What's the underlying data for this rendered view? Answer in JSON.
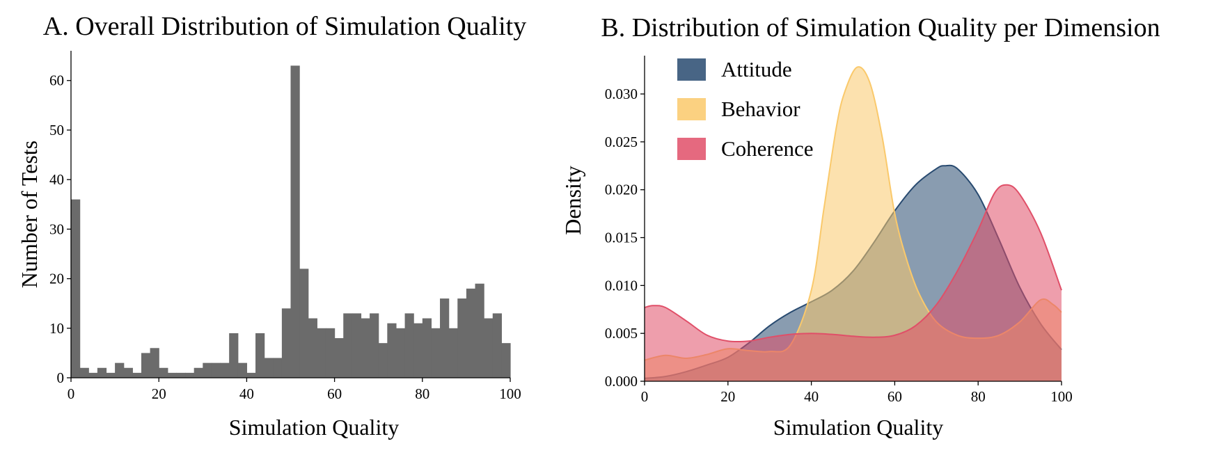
{
  "chart_data": [
    {
      "type": "bar",
      "title": "A. Overall Distribution of Simulation Quality",
      "xlabel": "Simulation Quality",
      "ylabel": "Number of Tests",
      "xlim": [
        0,
        100
      ],
      "ylim": [
        0,
        66
      ],
      "xticks": [
        0,
        20,
        40,
        60,
        80,
        100
      ],
      "yticks": [
        0,
        10,
        20,
        30,
        40,
        50,
        60
      ],
      "bin_width": 2,
      "bar_color": "#6b6b6b",
      "grid": false,
      "values": [
        36,
        2,
        1,
        2,
        1,
        3,
        2,
        1,
        5,
        6,
        2,
        1,
        1,
        1,
        2,
        3,
        3,
        3,
        9,
        3,
        1,
        9,
        4,
        4,
        14,
        63,
        22,
        12,
        10,
        10,
        8,
        13,
        13,
        12,
        13,
        7,
        11,
        10,
        13,
        11,
        12,
        10,
        16,
        10,
        16,
        18,
        19,
        12,
        13,
        7
      ]
    },
    {
      "type": "area",
      "title": "B. Distribution of Simulation Quality per Dimension",
      "xlabel": "Simulation Quality",
      "ylabel": "Density",
      "xlim": [
        0,
        100
      ],
      "ylim": [
        0,
        0.034
      ],
      "xticks": [
        0,
        20,
        40,
        60,
        80,
        100
      ],
      "yticks": [
        "0.000",
        "0.005",
        "0.010",
        "0.015",
        "0.020",
        "0.025",
        "0.030"
      ],
      "legend_position": "top-left",
      "grid": false,
      "series": [
        {
          "name": "Attitude",
          "color": "#284a70",
          "points": [
            [
              0,
              0.0003
            ],
            [
              5,
              0.0005
            ],
            [
              10,
              0.001
            ],
            [
              15,
              0.0017
            ],
            [
              20,
              0.0025
            ],
            [
              25,
              0.004
            ],
            [
              30,
              0.0058
            ],
            [
              35,
              0.0072
            ],
            [
              40,
              0.0083
            ],
            [
              45,
              0.0095
            ],
            [
              50,
              0.0115
            ],
            [
              55,
              0.0145
            ],
            [
              60,
              0.0178
            ],
            [
              65,
              0.0205
            ],
            [
              70,
              0.0222
            ],
            [
              72,
              0.0225
            ],
            [
              75,
              0.0222
            ],
            [
              80,
              0.0195
            ],
            [
              85,
              0.0148
            ],
            [
              90,
              0.0098
            ],
            [
              95,
              0.006
            ],
            [
              100,
              0.0033
            ]
          ]
        },
        {
          "name": "Behavior",
          "color": "#fac96b",
          "points": [
            [
              0,
              0.0022
            ],
            [
              5,
              0.0027
            ],
            [
              10,
              0.0024
            ],
            [
              15,
              0.0028
            ],
            [
              20,
              0.0034
            ],
            [
              25,
              0.0032
            ],
            [
              30,
              0.0031
            ],
            [
              35,
              0.0038
            ],
            [
              40,
              0.0095
            ],
            [
              43,
              0.018
            ],
            [
              46,
              0.0265
            ],
            [
              48,
              0.0302
            ],
            [
              51,
              0.0328
            ],
            [
              54,
              0.0312
            ],
            [
              57,
              0.0255
            ],
            [
              60,
              0.0175
            ],
            [
              63,
              0.0125
            ],
            [
              66,
              0.009
            ],
            [
              70,
              0.0062
            ],
            [
              75,
              0.0048
            ],
            [
              80,
              0.0045
            ],
            [
              85,
              0.0048
            ],
            [
              90,
              0.0062
            ],
            [
              95,
              0.0085
            ],
            [
              98,
              0.008
            ],
            [
              100,
              0.0072
            ]
          ]
        },
        {
          "name": "Coherence",
          "color": "#e04f68",
          "points": [
            [
              0,
              0.0077
            ],
            [
              2,
              0.0079
            ],
            [
              5,
              0.0077
            ],
            [
              10,
              0.0063
            ],
            [
              15,
              0.0048
            ],
            [
              20,
              0.0042
            ],
            [
              25,
              0.0042
            ],
            [
              30,
              0.0046
            ],
            [
              35,
              0.0049
            ],
            [
              40,
              0.005
            ],
            [
              45,
              0.0049
            ],
            [
              50,
              0.0047
            ],
            [
              55,
              0.0046
            ],
            [
              60,
              0.0048
            ],
            [
              65,
              0.0058
            ],
            [
              70,
              0.008
            ],
            [
              75,
              0.0115
            ],
            [
              80,
              0.0158
            ],
            [
              84,
              0.0197
            ],
            [
              87,
              0.0205
            ],
            [
              90,
              0.0195
            ],
            [
              95,
              0.0155
            ],
            [
              100,
              0.0095
            ]
          ]
        }
      ]
    }
  ]
}
